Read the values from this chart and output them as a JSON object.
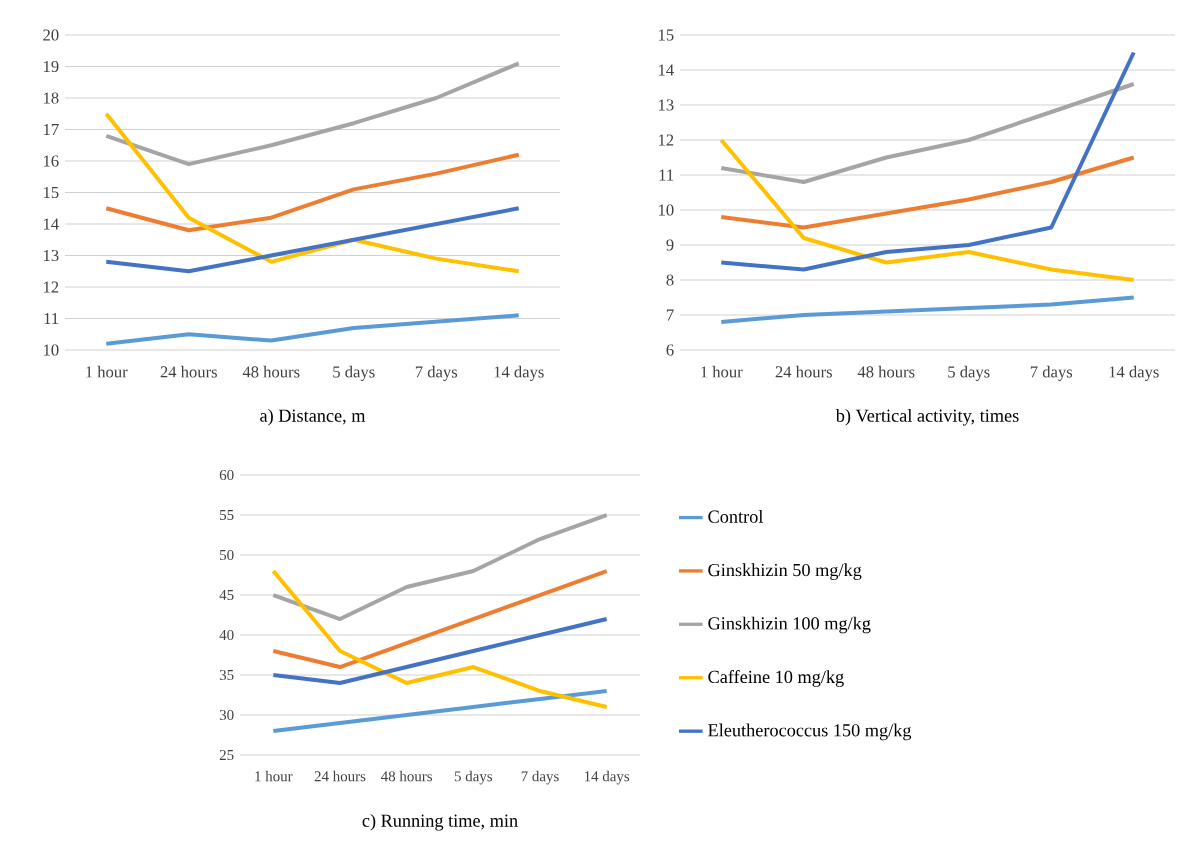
{
  "chart_data": [
    {
      "type": "line",
      "title": "a) Distance, m",
      "categories": [
        "1 hour",
        "24 hours",
        "48 hours",
        "5 days",
        "7 days",
        "14 days"
      ],
      "ylim": [
        10,
        20
      ],
      "yticks": [
        10,
        11,
        12,
        13,
        14,
        15,
        16,
        17,
        18,
        19,
        20
      ],
      "grid": "y",
      "series": [
        {
          "color": "#5b9bd5",
          "values": [
            10.2,
            10.5,
            10.3,
            10.7,
            10.9,
            11.1
          ]
        },
        {
          "color": "#ed7d31",
          "values": [
            14.5,
            13.8,
            14.2,
            15.1,
            15.6,
            16.2
          ]
        },
        {
          "color": "#a5a5a5",
          "values": [
            16.8,
            15.9,
            16.5,
            17.2,
            18.0,
            19.1
          ]
        },
        {
          "color": "#ffc000",
          "values": [
            17.5,
            14.2,
            12.8,
            13.5,
            12.9,
            12.5
          ]
        },
        {
          "color": "#4472c4",
          "values": [
            12.8,
            12.5,
            13.0,
            13.5,
            14.0,
            14.5
          ]
        }
      ]
    },
    {
      "type": "line",
      "title": "b) Vertical activity, times",
      "categories": [
        "1 hour",
        "24 hours",
        "48 hours",
        "5 days",
        "7 days",
        "14 days"
      ],
      "ylim": [
        6,
        15
      ],
      "yticks": [
        6,
        7,
        8,
        9,
        10,
        11,
        12,
        13,
        14,
        15
      ],
      "grid": "y",
      "series": [
        {
          "color": "#5b9bd5",
          "values": [
            6.8,
            7.0,
            7.1,
            7.2,
            7.3,
            7.5
          ]
        },
        {
          "color": "#ed7d31",
          "values": [
            9.8,
            9.5,
            9.9,
            10.3,
            10.8,
            11.5
          ]
        },
        {
          "color": "#a5a5a5",
          "values": [
            11.2,
            10.8,
            11.5,
            12.0,
            12.8,
            13.6
          ]
        },
        {
          "color": "#ffc000",
          "values": [
            12.0,
            9.2,
            8.5,
            8.8,
            8.3,
            8.0
          ]
        },
        {
          "color": "#4472c4",
          "values": [
            8.5,
            8.3,
            8.8,
            9.0,
            9.5,
            14.5
          ]
        }
      ]
    },
    {
      "type": "line",
      "title": "c) Running time, min",
      "categories": [
        "1 hour",
        "24 hours",
        "48 hours",
        "5 days",
        "7 days",
        "14 days"
      ],
      "ylim": [
        25,
        60
      ],
      "yticks": [
        25,
        30,
        35,
        40,
        45,
        50,
        55,
        60
      ],
      "grid": "y",
      "legend": "right",
      "series": [
        {
          "name": "Control",
          "color": "#5b9bd5",
          "values": [
            28,
            29,
            30,
            31,
            32,
            33
          ]
        },
        {
          "name": "Ginskhizin 50 mg/kg",
          "color": "#ed7d31",
          "values": [
            38,
            36,
            39,
            42,
            45,
            48
          ]
        },
        {
          "name": "Ginskhizin 100 mg/kg",
          "color": "#a5a5a5",
          "values": [
            45,
            42,
            46,
            48,
            52,
            55
          ]
        },
        {
          "name": "Caffeine 10 mg/kg",
          "color": "#ffc000",
          "values": [
            48,
            38,
            34,
            36,
            33,
            31
          ]
        },
        {
          "name": "Eleutherococcus 150 mg/kg",
          "color": "#4472c4",
          "values": [
            35,
            34,
            36,
            38,
            40,
            42
          ]
        }
      ]
    }
  ]
}
